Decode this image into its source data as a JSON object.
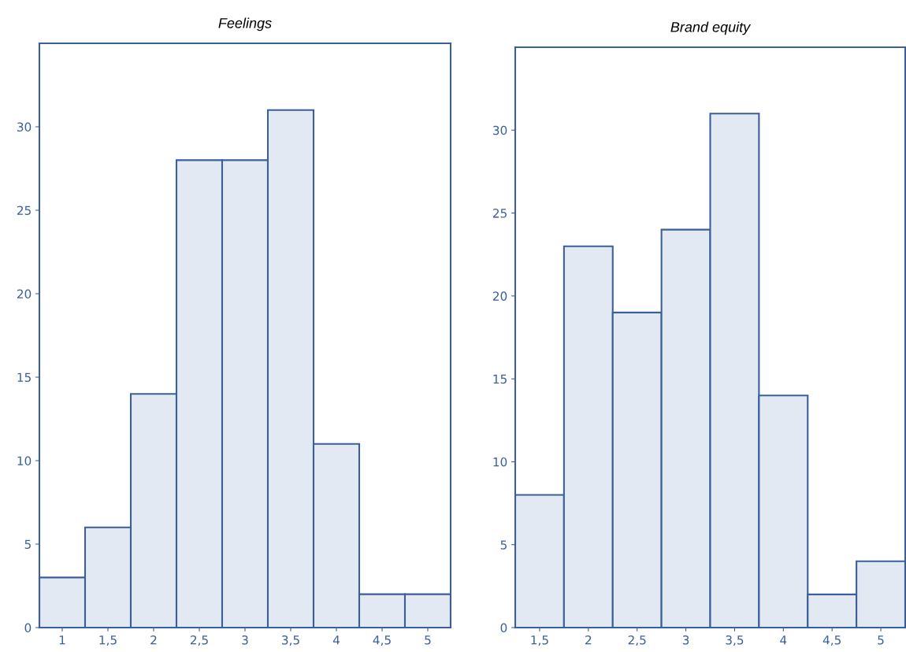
{
  "chart_data": [
    {
      "type": "histogram",
      "title": "Feelings",
      "bins": [
        0.75,
        1.25,
        1.75,
        2.25,
        2.75,
        3.25,
        3.75,
        4.25,
        4.75,
        5.25
      ],
      "values": [
        3,
        6,
        14,
        28,
        28,
        31,
        11,
        2,
        2
      ],
      "color": "#e3e9f2",
      "xlim": [
        0.75,
        5.25
      ],
      "ylim": [
        0,
        35
      ],
      "xticks": [
        1,
        {
          "value": 1.5,
          "label": "1,5"
        },
        2,
        {
          "value": 2.5,
          "label": "2,5"
        },
        3,
        {
          "value": 3.5,
          "label": "3,5"
        },
        4,
        {
          "value": 4.5,
          "label": "4,5"
        },
        5
      ],
      "yticks": [
        0,
        5,
        10,
        15,
        20,
        25,
        30
      ],
      "grid": false
    },
    {
      "type": "histogram",
      "title": "Brand equity",
      "bins": [
        1.25,
        1.75,
        2.25,
        2.75,
        3.25,
        3.75,
        4.25,
        4.75,
        5.25
      ],
      "values": [
        8,
        23,
        19,
        24,
        31,
        14,
        2,
        4
      ],
      "color": "#e3e9f2",
      "xlim": [
        1.25,
        5.25
      ],
      "ylim": [
        0,
        35
      ],
      "xticks": [
        {
          "value": 1.5,
          "label": "1,5"
        },
        2,
        {
          "value": 2.5,
          "label": "2,5"
        },
        3,
        {
          "value": 3.5,
          "label": "3,5"
        },
        4,
        {
          "value": 4.5,
          "label": "4,5"
        },
        5
      ],
      "yticks": [
        0,
        5,
        10,
        15,
        20,
        25,
        30
      ],
      "grid": false
    }
  ]
}
